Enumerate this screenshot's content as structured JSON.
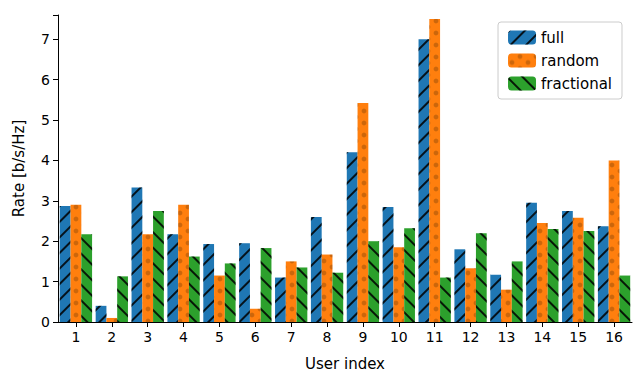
{
  "chart_data": {
    "type": "bar",
    "x_label": "User index",
    "y_label": "Rate [b/s/Hz]",
    "categories": [
      "1",
      "2",
      "3",
      "4",
      "5",
      "6",
      "7",
      "8",
      "9",
      "10",
      "11",
      "12",
      "13",
      "14",
      "15",
      "16"
    ],
    "series": [
      {
        "name": "full",
        "color": "#1f77b4",
        "values": [
          2.87,
          0.4,
          3.33,
          2.17,
          1.93,
          1.95,
          1.1,
          2.6,
          4.2,
          2.85,
          7.0,
          1.8,
          1.17,
          2.95,
          2.75,
          2.37
        ]
      },
      {
        "name": "random",
        "color": "#ff7f0e",
        "values": [
          2.9,
          0.1,
          2.17,
          2.9,
          1.15,
          0.33,
          1.5,
          1.67,
          5.42,
          1.85,
          7.5,
          1.33,
          0.8,
          2.45,
          2.58,
          4.0
        ]
      },
      {
        "name": "fractional",
        "color": "#2ca02c",
        "values": [
          2.17,
          1.13,
          2.75,
          1.62,
          1.45,
          1.83,
          1.35,
          1.22,
          2.0,
          2.32,
          1.1,
          2.2,
          1.5,
          2.3,
          2.25,
          1.15
        ]
      }
    ],
    "ylim": [
      0,
      7.6
    ],
    "yticks": [
      0,
      1,
      2,
      3,
      4,
      5,
      6,
      7
    ],
    "grid": false,
    "legend": "upper right"
  }
}
